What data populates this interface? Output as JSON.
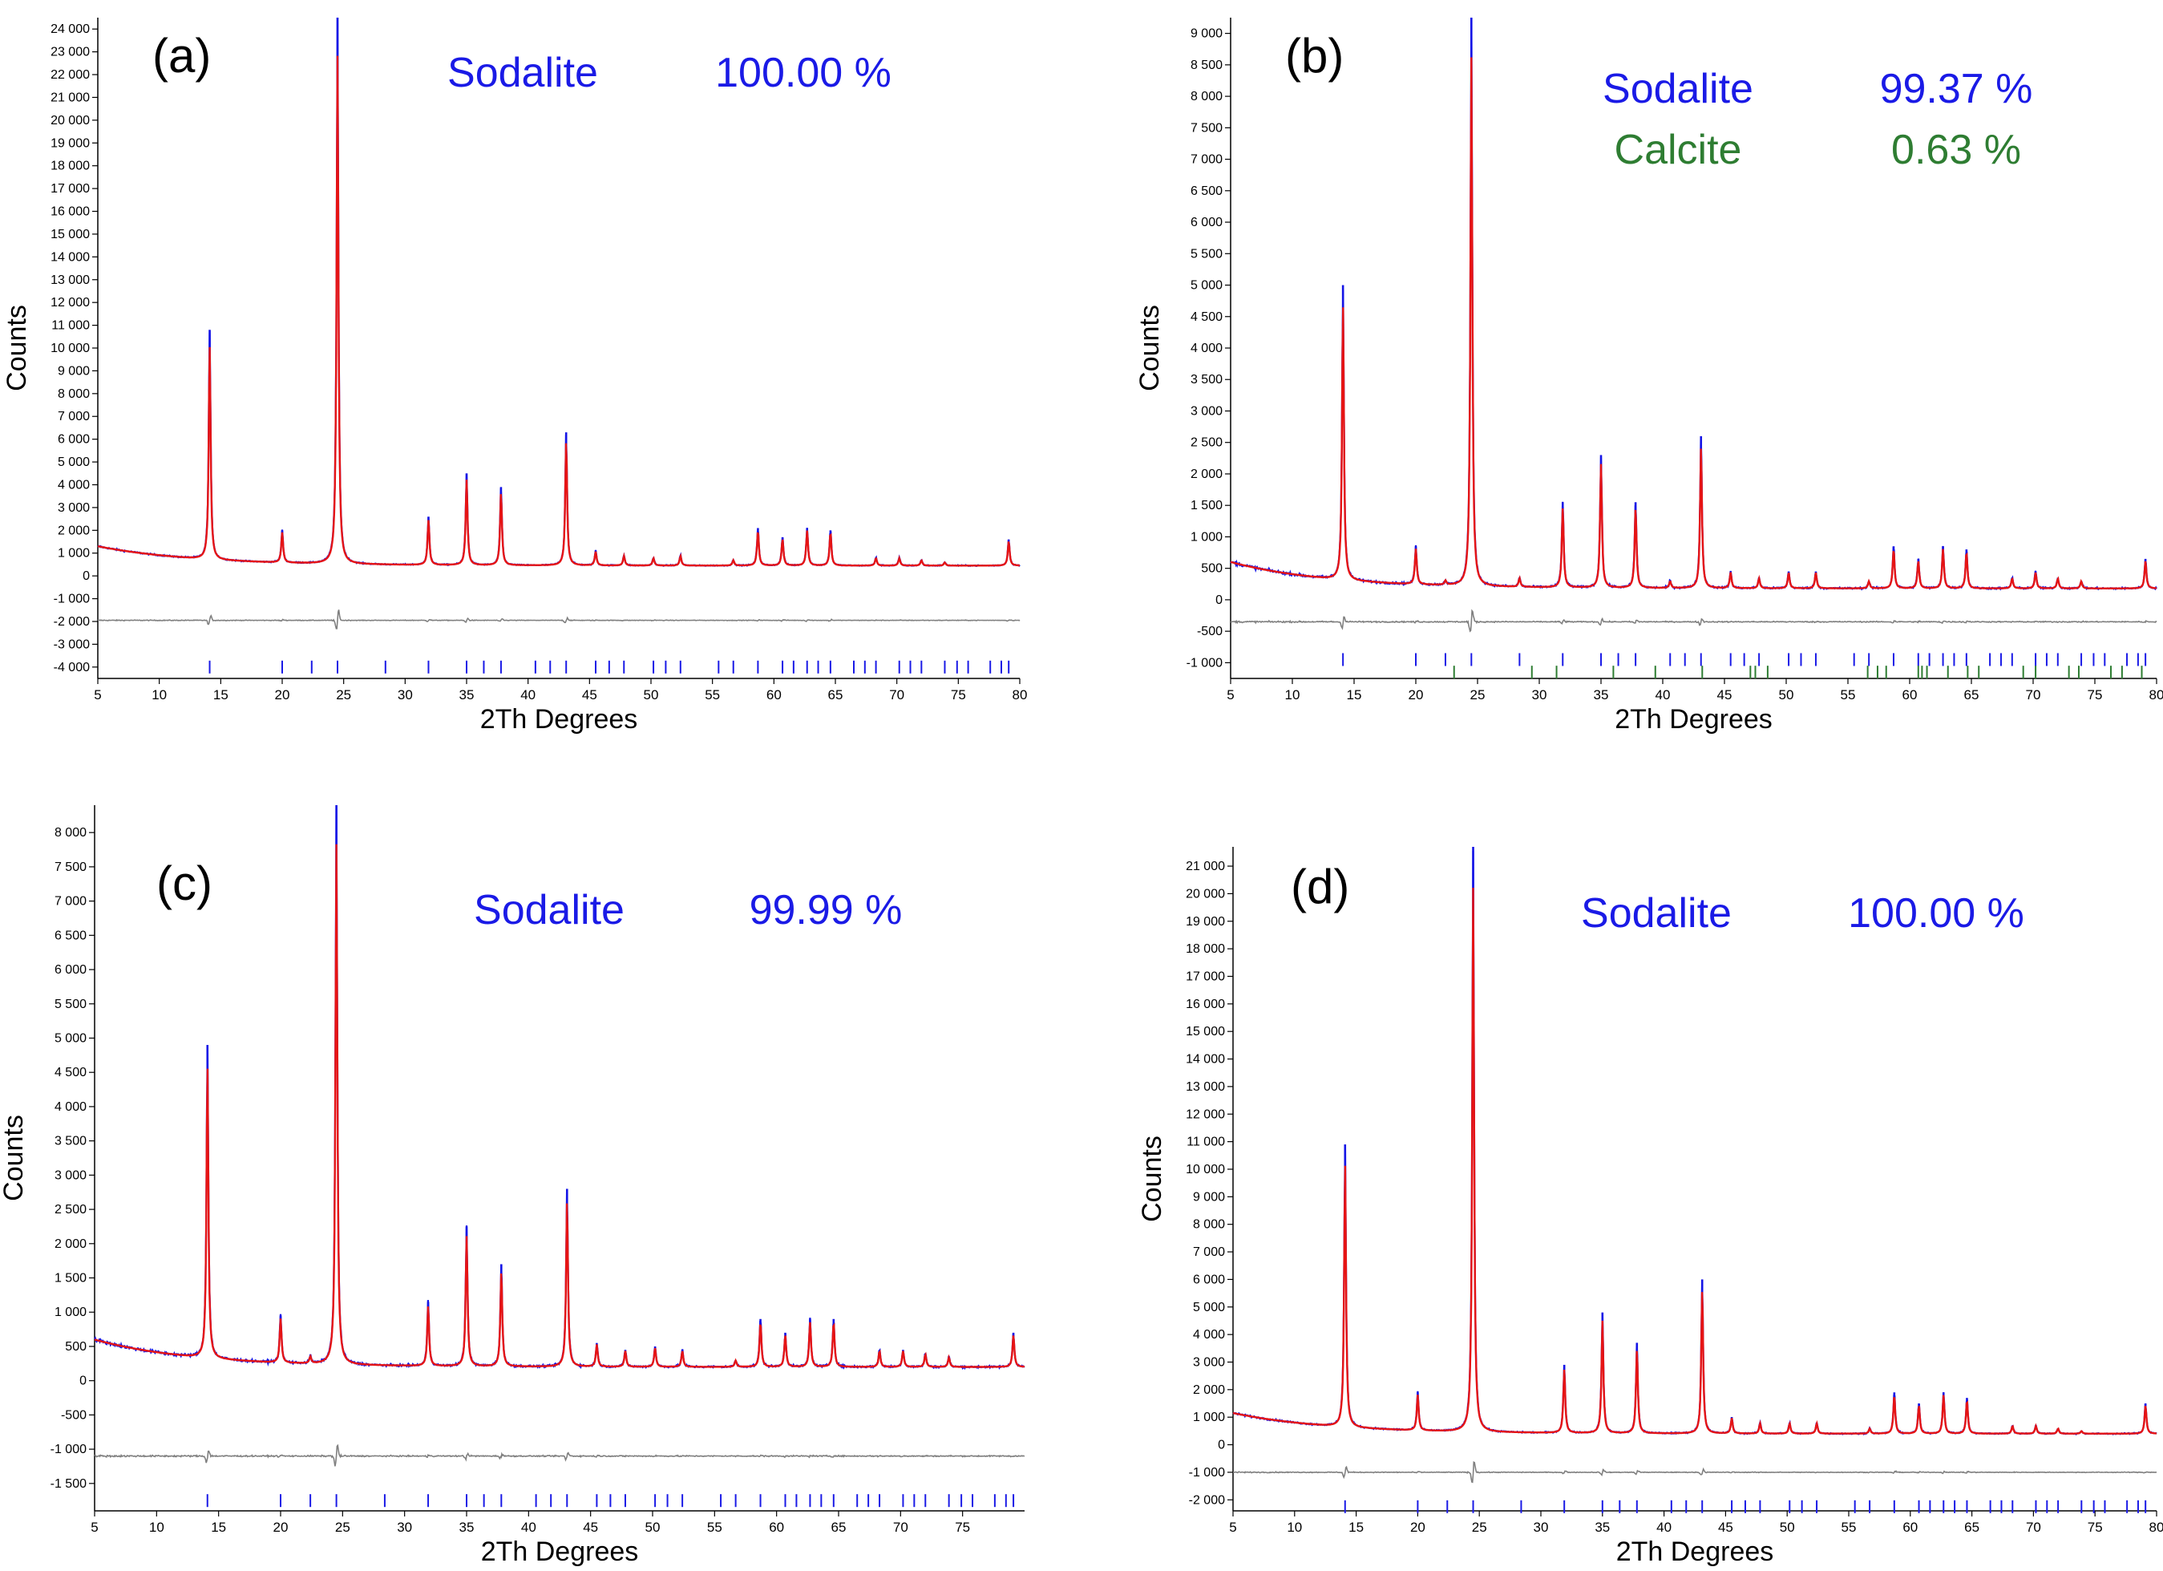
{
  "figure": {
    "series_colors": {
      "observed": "#1414e6",
      "calculated": "#e61414",
      "difference": "#808080"
    },
    "phase_colors": {
      "Sodalite": "#1a1ae6",
      "Calcite": "#2e7d32"
    }
  },
  "chart_data": [
    {
      "type": "line",
      "panel_label": "(a)",
      "xlabel": "2Th Degrees",
      "ylabel": "Counts",
      "xlim": [
        5,
        80
      ],
      "ylim": [
        -4500,
        24500
      ],
      "yticks": [
        24000,
        23000,
        22000,
        21000,
        20000,
        19000,
        18000,
        17000,
        16000,
        15000,
        14000,
        13000,
        12000,
        11000,
        10000,
        9000,
        8000,
        7000,
        6000,
        5000,
        4000,
        3000,
        2000,
        1000,
        0,
        -1000,
        -2000,
        -3000,
        -4000
      ],
      "ytick_labels": [
        "24 000",
        "23 000",
        "22 000",
        "21 000",
        "20 000",
        "19 000",
        "18 000",
        "17 000",
        "16 000",
        "15 000",
        "14 000",
        "13 000",
        "12 000",
        "11 000",
        "10 000",
        "9 000",
        "8 000",
        "7 000",
        "6 000",
        "5 000",
        "4 000",
        "3 000",
        "2 000",
        "1 000",
        "0",
        "-1 000",
        "-2 000",
        "-3 000",
        "-4 000"
      ],
      "xticks": [
        5,
        10,
        15,
        20,
        25,
        30,
        35,
        40,
        45,
        50,
        55,
        60,
        65,
        70,
        75,
        80
      ],
      "xtick_labels": [
        "5",
        "10",
        "15",
        "20",
        "25",
        "30",
        "35",
        "40",
        "45",
        "50",
        "55",
        "60",
        "65",
        "70",
        "75",
        "80"
      ],
      "background": {
        "start": 1300,
        "end": 450,
        "decay": 8
      },
      "peaks": [
        {
          "x": 14.1,
          "y": 10800
        },
        {
          "x": 20.0,
          "y": 2000
        },
        {
          "x": 24.5,
          "y": 24500
        },
        {
          "x": 31.9,
          "y": 2600
        },
        {
          "x": 35.0,
          "y": 4500
        },
        {
          "x": 37.8,
          "y": 3900
        },
        {
          "x": 43.1,
          "y": 6300
        },
        {
          "x": 45.5,
          "y": 1100
        },
        {
          "x": 47.8,
          "y": 900
        },
        {
          "x": 50.2,
          "y": 800
        },
        {
          "x": 52.4,
          "y": 900
        },
        {
          "x": 56.7,
          "y": 700
        },
        {
          "x": 58.7,
          "y": 2100
        },
        {
          "x": 60.7,
          "y": 1700
        },
        {
          "x": 62.7,
          "y": 2100
        },
        {
          "x": 64.6,
          "y": 2000
        },
        {
          "x": 68.3,
          "y": 800
        },
        {
          "x": 70.2,
          "y": 800
        },
        {
          "x": 72.0,
          "y": 700
        },
        {
          "x": 73.9,
          "y": 600
        },
        {
          "x": 79.1,
          "y": 1600
        }
      ],
      "difference_offset": -1950,
      "reflection_rows": [
        {
          "phase": "Sodalite",
          "y": -4000,
          "positions": [
            14.1,
            20.0,
            22.4,
            24.5,
            28.4,
            31.9,
            35.0,
            36.4,
            37.8,
            40.6,
            41.8,
            43.1,
            45.5,
            46.6,
            47.8,
            50.2,
            51.2,
            52.4,
            55.5,
            56.7,
            58.7,
            60.7,
            61.6,
            62.7,
            63.6,
            64.6,
            66.5,
            67.4,
            68.3,
            70.2,
            71.1,
            72.0,
            73.9,
            74.9,
            75.8,
            77.6,
            78.5,
            79.1
          ]
        }
      ],
      "phases": [
        {
          "name": "Sodalite",
          "value": "100.00 %"
        }
      ]
    },
    {
      "type": "line",
      "panel_label": "(b)",
      "xlabel": "2Th Degrees",
      "ylabel": "Counts",
      "xlim": [
        5,
        80
      ],
      "ylim": [
        -1250,
        9250
      ],
      "yticks": [
        9000,
        8500,
        8000,
        7500,
        7000,
        6500,
        6000,
        5500,
        5000,
        4500,
        4000,
        3500,
        3000,
        2500,
        2000,
        1500,
        1000,
        500,
        0,
        -500,
        -1000
      ],
      "ytick_labels": [
        "9 000",
        "8 500",
        "8 000",
        "7 500",
        "7 000",
        "6 500",
        "6 000",
        "5 500",
        "5 000",
        "4 500",
        "4 000",
        "3 500",
        "3 000",
        "2 500",
        "2 000",
        "1 500",
        "1 000",
        "500",
        "0",
        "-500",
        "-1 000"
      ],
      "xticks": [
        5,
        10,
        15,
        20,
        25,
        30,
        35,
        40,
        45,
        50,
        55,
        60,
        65,
        70,
        75,
        80
      ],
      "xtick_labels": [
        "5",
        "10",
        "15",
        "20",
        "25",
        "30",
        "35",
        "40",
        "45",
        "50",
        "55",
        "60",
        "65",
        "70",
        "75",
        "80"
      ],
      "background": {
        "start": 600,
        "end": 180,
        "decay": 8
      },
      "peaks": [
        {
          "x": 14.1,
          "y": 5000
        },
        {
          "x": 20.0,
          "y": 850
        },
        {
          "x": 22.4,
          "y": 300
        },
        {
          "x": 24.5,
          "y": 9250
        },
        {
          "x": 28.4,
          "y": 350
        },
        {
          "x": 31.9,
          "y": 1550
        },
        {
          "x": 35.0,
          "y": 2300
        },
        {
          "x": 37.8,
          "y": 1550
        },
        {
          "x": 40.6,
          "y": 300
        },
        {
          "x": 43.1,
          "y": 2600
        },
        {
          "x": 45.5,
          "y": 450
        },
        {
          "x": 47.8,
          "y": 350
        },
        {
          "x": 50.2,
          "y": 450
        },
        {
          "x": 52.4,
          "y": 450
        },
        {
          "x": 56.7,
          "y": 300
        },
        {
          "x": 58.7,
          "y": 850
        },
        {
          "x": 60.7,
          "y": 650
        },
        {
          "x": 62.7,
          "y": 850
        },
        {
          "x": 64.6,
          "y": 800
        },
        {
          "x": 68.3,
          "y": 350
        },
        {
          "x": 70.2,
          "y": 450
        },
        {
          "x": 72.0,
          "y": 350
        },
        {
          "x": 73.9,
          "y": 300
        },
        {
          "x": 79.1,
          "y": 650
        }
      ],
      "difference_offset": -350,
      "reflection_rows": [
        {
          "phase": "Sodalite",
          "y": -950,
          "positions": [
            14.1,
            20.0,
            22.4,
            24.5,
            28.4,
            31.9,
            35.0,
            36.4,
            37.8,
            40.6,
            41.8,
            43.1,
            45.5,
            46.6,
            47.8,
            50.2,
            51.2,
            52.4,
            55.5,
            56.7,
            58.7,
            60.7,
            61.6,
            62.7,
            63.6,
            64.6,
            66.5,
            67.4,
            68.3,
            70.2,
            71.1,
            72.0,
            73.9,
            74.9,
            75.8,
            77.6,
            78.5,
            79.1
          ]
        },
        {
          "phase": "Calcite",
          "y": -1150,
          "positions": [
            23.1,
            29.4,
            31.4,
            36.0,
            39.4,
            43.2,
            47.1,
            47.5,
            48.5,
            56.6,
            57.4,
            58.1,
            60.7,
            61.0,
            61.4,
            63.1,
            64.7,
            65.6,
            69.2,
            70.2,
            72.9,
            73.7,
            76.3,
            77.2,
            78.8
          ]
        }
      ],
      "phases": [
        {
          "name": "Sodalite",
          "value": "99.37 %"
        },
        {
          "name": "Calcite",
          "value": "0.63 %"
        }
      ]
    },
    {
      "type": "line",
      "panel_label": "(c)",
      "xlabel": "2Th Degrees",
      "ylabel": "Counts",
      "xlim": [
        5,
        80
      ],
      "ylim": [
        -1900,
        8400
      ],
      "yticks": [
        8000,
        7500,
        7000,
        6500,
        6000,
        5500,
        5000,
        4500,
        4000,
        3500,
        3000,
        2500,
        2000,
        1500,
        1000,
        500,
        0,
        -500,
        -1000,
        -1500
      ],
      "ytick_labels": [
        "8 000",
        "7 500",
        "7 000",
        "6 500",
        "6 000",
        "5 500",
        "5 000",
        "4 500",
        "4 000",
        "3 500",
        "3 000",
        "2 500",
        "2 000",
        "1 500",
        "1 000",
        "500",
        "0",
        "-500",
        "-1 000",
        "-1 500"
      ],
      "xticks": [
        5,
        10,
        15,
        20,
        25,
        30,
        35,
        40,
        45,
        50,
        55,
        60,
        65,
        70,
        75
      ],
      "xtick_labels": [
        "5",
        "10",
        "15",
        "20",
        "25",
        "30",
        "35",
        "40",
        "45",
        "50",
        "55",
        "60",
        "65",
        "70",
        "75"
      ],
      "background": {
        "start": 600,
        "end": 200,
        "decay": 8
      },
      "peaks": [
        {
          "x": 14.1,
          "y": 4900
        },
        {
          "x": 20.0,
          "y": 950
        },
        {
          "x": 22.4,
          "y": 350
        },
        {
          "x": 24.5,
          "y": 8400
        },
        {
          "x": 31.9,
          "y": 1150
        },
        {
          "x": 35.0,
          "y": 2250
        },
        {
          "x": 37.8,
          "y": 1700
        },
        {
          "x": 43.1,
          "y": 2800
        },
        {
          "x": 45.5,
          "y": 550
        },
        {
          "x": 47.8,
          "y": 450
        },
        {
          "x": 50.2,
          "y": 500
        },
        {
          "x": 52.4,
          "y": 450
        },
        {
          "x": 56.7,
          "y": 300
        },
        {
          "x": 58.7,
          "y": 900
        },
        {
          "x": 60.7,
          "y": 700
        },
        {
          "x": 62.7,
          "y": 900
        },
        {
          "x": 64.6,
          "y": 900
        },
        {
          "x": 68.3,
          "y": 450
        },
        {
          "x": 70.2,
          "y": 450
        },
        {
          "x": 72.0,
          "y": 400
        },
        {
          "x": 73.9,
          "y": 350
        },
        {
          "x": 79.1,
          "y": 700
        }
      ],
      "difference_offset": -1100,
      "reflection_rows": [
        {
          "phase": "Sodalite",
          "y": -1750,
          "positions": [
            14.1,
            20.0,
            22.4,
            24.5,
            28.4,
            31.9,
            35.0,
            36.4,
            37.8,
            40.6,
            41.8,
            43.1,
            45.5,
            46.6,
            47.8,
            50.2,
            51.2,
            52.4,
            55.5,
            56.7,
            58.7,
            60.7,
            61.6,
            62.7,
            63.6,
            64.6,
            66.5,
            67.4,
            68.3,
            70.2,
            71.1,
            72.0,
            73.9,
            74.9,
            75.8,
            77.6,
            78.5,
            79.1
          ]
        }
      ],
      "phases": [
        {
          "name": "Sodalite",
          "value": "99.99 %"
        }
      ]
    },
    {
      "type": "line",
      "panel_label": "(d)",
      "xlabel": "2Th Degrees",
      "ylabel": "Counts",
      "xlim": [
        5,
        80
      ],
      "ylim": [
        -2400,
        21700
      ],
      "yticks": [
        21000,
        20000,
        19000,
        18000,
        17000,
        16000,
        15000,
        14000,
        13000,
        12000,
        11000,
        10000,
        9000,
        8000,
        7000,
        6000,
        5000,
        4000,
        3000,
        2000,
        1000,
        0,
        -1000,
        -2000
      ],
      "ytick_labels": [
        "21 000",
        "20 000",
        "19 000",
        "18 000",
        "17 000",
        "16 000",
        "15 000",
        "14 000",
        "13 000",
        "12 000",
        "11 000",
        "10 000",
        "9 000",
        "8 000",
        "7 000",
        "6 000",
        "5 000",
        "4 000",
        "3 000",
        "2 000",
        "1 000",
        "0",
        "-1 000",
        "-2 000"
      ],
      "xticks": [
        5,
        10,
        15,
        20,
        25,
        30,
        35,
        40,
        45,
        50,
        55,
        60,
        65,
        70,
        75,
        80
      ],
      "xtick_labels": [
        "5",
        "10",
        "15",
        "20",
        "25",
        "30",
        "35",
        "40",
        "45",
        "50",
        "55",
        "60",
        "65",
        "70",
        "75",
        "80"
      ],
      "background": {
        "start": 1150,
        "end": 400,
        "decay": 8
      },
      "peaks": [
        {
          "x": 14.1,
          "y": 10900
        },
        {
          "x": 20.0,
          "y": 1900
        },
        {
          "x": 24.5,
          "y": 21700
        },
        {
          "x": 31.9,
          "y": 2900
        },
        {
          "x": 35.0,
          "y": 4800
        },
        {
          "x": 37.8,
          "y": 3700
        },
        {
          "x": 43.1,
          "y": 6000
        },
        {
          "x": 45.5,
          "y": 1000
        },
        {
          "x": 47.8,
          "y": 800
        },
        {
          "x": 50.2,
          "y": 800
        },
        {
          "x": 52.4,
          "y": 800
        },
        {
          "x": 56.7,
          "y": 600
        },
        {
          "x": 58.7,
          "y": 1900
        },
        {
          "x": 60.7,
          "y": 1500
        },
        {
          "x": 62.7,
          "y": 1900
        },
        {
          "x": 64.6,
          "y": 1700
        },
        {
          "x": 68.3,
          "y": 700
        },
        {
          "x": 70.2,
          "y": 700
        },
        {
          "x": 72.0,
          "y": 600
        },
        {
          "x": 73.9,
          "y": 500
        },
        {
          "x": 79.1,
          "y": 1500
        }
      ],
      "difference_offset": -1000,
      "reflection_rows": [
        {
          "phase": "Sodalite",
          "y": -2250,
          "positions": [
            14.1,
            20.0,
            22.4,
            24.5,
            28.4,
            31.9,
            35.0,
            36.4,
            37.8,
            40.6,
            41.8,
            43.1,
            45.5,
            46.6,
            47.8,
            50.2,
            51.2,
            52.4,
            55.5,
            56.7,
            58.7,
            60.7,
            61.6,
            62.7,
            63.6,
            64.6,
            66.5,
            67.4,
            68.3,
            70.2,
            71.1,
            72.0,
            73.9,
            74.9,
            75.8,
            77.6,
            78.5,
            79.1
          ]
        }
      ],
      "phases": [
        {
          "name": "Sodalite",
          "value": "100.00 %"
        }
      ]
    }
  ]
}
